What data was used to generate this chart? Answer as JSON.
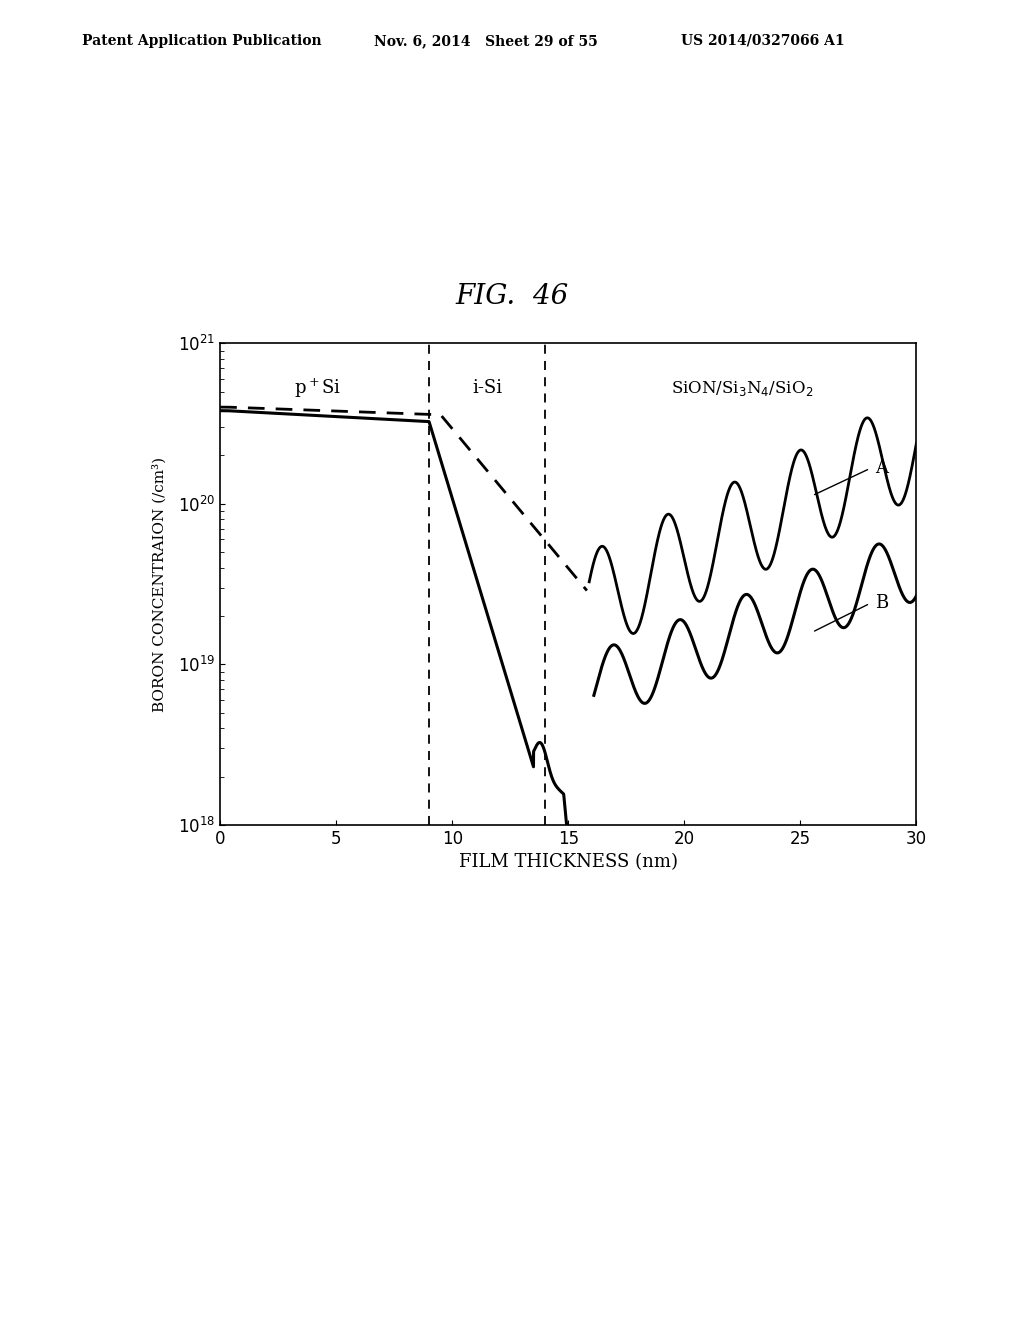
{
  "title": "FIG.  46",
  "xlabel": "FILM THICKNESS (nm)",
  "ylabel": "BORON CONCENTRAION (/cm³)",
  "xlim": [
    0,
    30
  ],
  "ylim": [
    1e+18,
    1e+21
  ],
  "xticks": [
    0,
    5,
    10,
    15,
    20,
    25,
    30
  ],
  "vline1": 9.0,
  "vline2": 14.0,
  "header_left": "Patent Application Publication",
  "header_mid": "Nov. 6, 2014   Sheet 29 of 55",
  "header_right": "US 2014/0327066 A1",
  "background_color": "#ffffff",
  "line_color": "#000000"
}
